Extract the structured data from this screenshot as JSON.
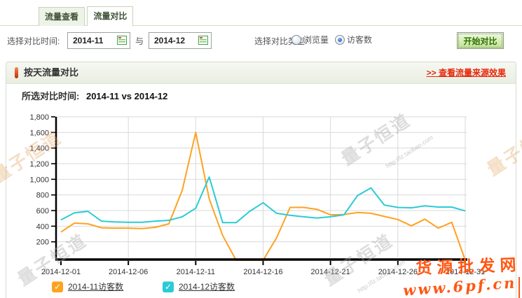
{
  "tabs": {
    "items": [
      {
        "label": "流量查看",
        "active": false
      },
      {
        "label": "流量对比",
        "active": true
      }
    ]
  },
  "filters": {
    "time_label": "选择对比时间:",
    "date_from": "2014-11",
    "between_label": "与",
    "date_to": "2014-12",
    "type_label": "选择对比类型:",
    "options": [
      {
        "label": "浏览量",
        "selected": false
      },
      {
        "label": "访客数",
        "selected": true
      }
    ],
    "submit_label": "开始对比"
  },
  "section": {
    "title": "按天流量对比",
    "source_link": ">> 查看流量来源效果",
    "selected_label": "所选对比时间:",
    "selected_value": "2014-11 vs 2014-12"
  },
  "chart_data": {
    "type": "line",
    "title": "按天流量对比 2014-11 vs 2014-12",
    "x_unit": "day-of-month",
    "x_count": 31,
    "x_tick_days": [
      1,
      6,
      11,
      16,
      21,
      26,
      31
    ],
    "x_tick_labels": [
      "2014-12-01",
      "2014-12-06",
      "2014-12-11",
      "2014-12-16",
      "2014-12-21",
      "2014-12-26",
      "2014-12-31"
    ],
    "ylim": [
      0,
      1800
    ],
    "y_ticks": [
      200,
      400,
      600,
      800,
      1000,
      1200,
      1400,
      1600,
      1800
    ],
    "grid": true,
    "legend_position": "bottom",
    "series": [
      {
        "name": "2014-11访客数",
        "color": "#FFA21F",
        "values": [
          325,
          440,
          430,
          380,
          375,
          375,
          370,
          385,
          430,
          860,
          1600,
          750,
          280,
          0,
          0,
          0,
          250,
          640,
          640,
          615,
          545,
          550,
          575,
          565,
          525,
          485,
          405,
          490,
          375,
          450,
          0
        ]
      },
      {
        "name": "2014-12访客数",
        "color": "#2BCBD6",
        "values": [
          480,
          570,
          590,
          465,
          455,
          450,
          450,
          465,
          475,
          520,
          630,
          1030,
          445,
          445,
          590,
          700,
          565,
          540,
          520,
          505,
          520,
          545,
          790,
          890,
          670,
          640,
          635,
          660,
          645,
          645,
          595
        ]
      }
    ]
  },
  "legend": {
    "items": [
      {
        "label": "2014-11访客数",
        "color": "#FFA21F",
        "checkmark": "✓"
      },
      {
        "label": "2014-12访客数",
        "color": "#2BCBD6",
        "checkmark": "✓"
      }
    ]
  },
  "watermarks": {
    "brand": "量子恒道",
    "url": "http://lz.taobao.com",
    "overlay_line1": "货源批发网",
    "overlay_line2": "www.6pf.cn"
  }
}
